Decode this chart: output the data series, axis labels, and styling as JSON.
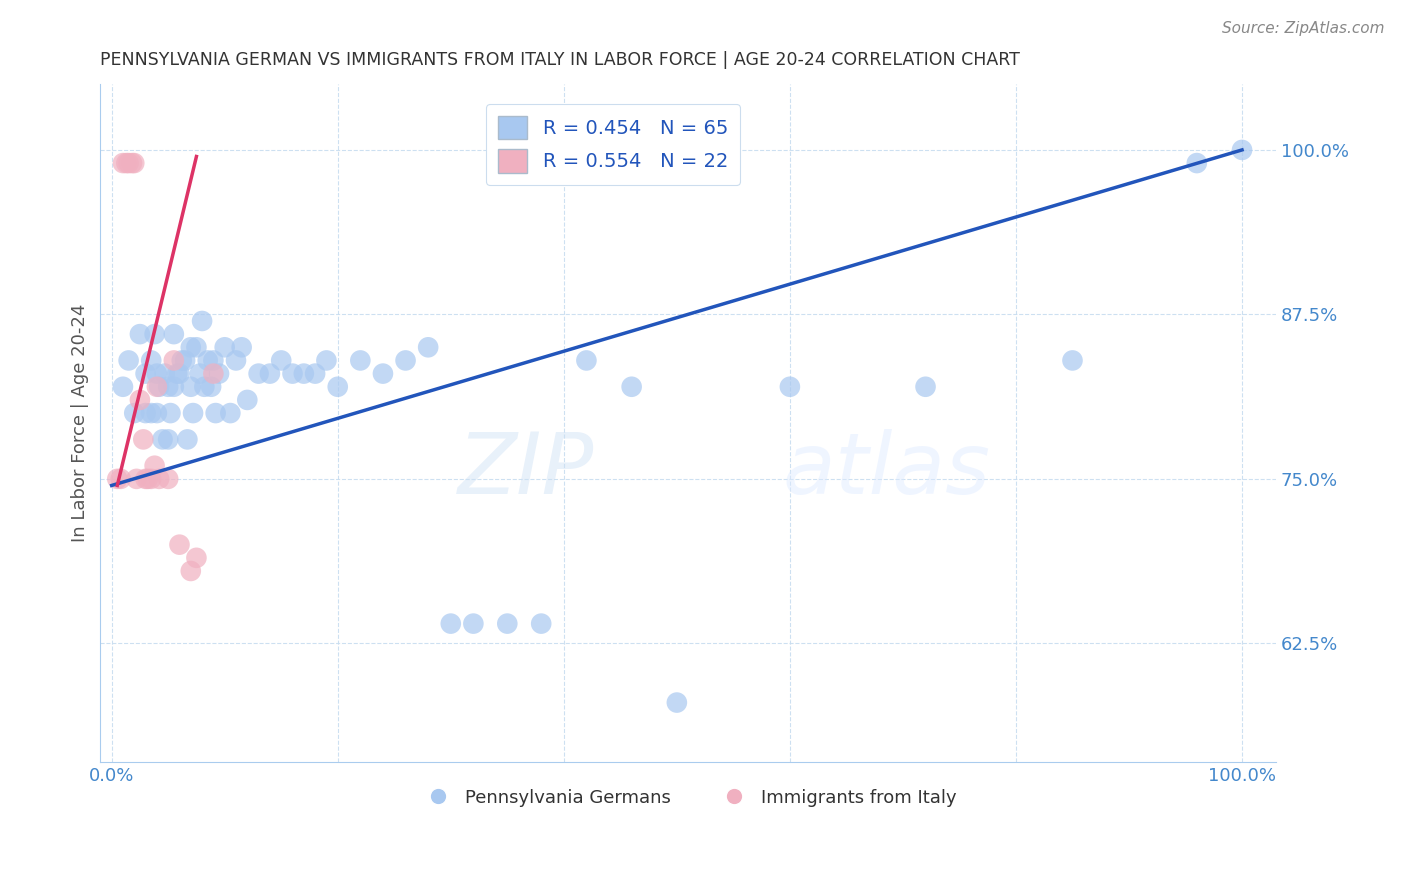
{
  "title": "PENNSYLVANIA GERMAN VS IMMIGRANTS FROM ITALY IN LABOR FORCE | AGE 20-24 CORRELATION CHART",
  "source": "Source: ZipAtlas.com",
  "ylabel": "In Labor Force | Age 20-24",
  "blue_R": "R = 0.454",
  "blue_N": "N = 65",
  "pink_R": "R = 0.554",
  "pink_N": "N = 22",
  "legend_label_blue": "Pennsylvania Germans",
  "legend_label_pink": "Immigrants from Italy",
  "blue_color": "#a8c8f0",
  "pink_color": "#f0b0c0",
  "blue_line_color": "#2255bb",
  "pink_line_color": "#dd3366",
  "axis_color": "#4488cc",
  "watermark_zip": "ZIP",
  "watermark_atlas": "atlas",
  "blue_scatter_x": [
    0.01,
    0.015,
    0.02,
    0.025,
    0.03,
    0.03,
    0.035,
    0.035,
    0.038,
    0.04,
    0.04,
    0.042,
    0.045,
    0.047,
    0.05,
    0.05,
    0.052,
    0.055,
    0.055,
    0.058,
    0.06,
    0.062,
    0.065,
    0.067,
    0.07,
    0.07,
    0.072,
    0.075,
    0.078,
    0.08,
    0.082,
    0.085,
    0.088,
    0.09,
    0.092,
    0.095,
    0.1,
    0.105,
    0.11,
    0.115,
    0.12,
    0.13,
    0.14,
    0.15,
    0.16,
    0.17,
    0.18,
    0.19,
    0.2,
    0.22,
    0.24,
    0.26,
    0.28,
    0.3,
    0.32,
    0.35,
    0.38,
    0.42,
    0.46,
    0.5,
    0.6,
    0.72,
    0.85,
    0.96,
    1.0
  ],
  "blue_scatter_y": [
    0.82,
    0.84,
    0.8,
    0.86,
    0.8,
    0.83,
    0.8,
    0.84,
    0.86,
    0.8,
    0.83,
    0.82,
    0.78,
    0.83,
    0.78,
    0.82,
    0.8,
    0.82,
    0.86,
    0.83,
    0.83,
    0.84,
    0.84,
    0.78,
    0.82,
    0.85,
    0.8,
    0.85,
    0.83,
    0.87,
    0.82,
    0.84,
    0.82,
    0.84,
    0.8,
    0.83,
    0.85,
    0.8,
    0.84,
    0.85,
    0.81,
    0.83,
    0.83,
    0.84,
    0.83,
    0.83,
    0.83,
    0.84,
    0.82,
    0.84,
    0.83,
    0.84,
    0.85,
    0.64,
    0.64,
    0.64,
    0.64,
    0.84,
    0.82,
    0.58,
    0.82,
    0.82,
    0.84,
    0.99,
    1.0
  ],
  "pink_scatter_x": [
    0.005,
    0.008,
    0.01,
    0.013,
    0.015,
    0.018,
    0.02,
    0.022,
    0.025,
    0.028,
    0.03,
    0.032,
    0.035,
    0.038,
    0.04,
    0.042,
    0.05,
    0.055,
    0.06,
    0.07,
    0.075,
    0.09
  ],
  "pink_scatter_y": [
    0.75,
    0.75,
    0.99,
    0.99,
    0.99,
    0.99,
    0.99,
    0.75,
    0.81,
    0.78,
    0.75,
    0.75,
    0.75,
    0.76,
    0.82,
    0.75,
    0.75,
    0.84,
    0.7,
    0.68,
    0.69,
    0.83
  ],
  "blue_line_x0": 0.0,
  "blue_line_y0": 0.745,
  "blue_line_x1": 1.0,
  "blue_line_y1": 1.0,
  "pink_line_x0": 0.005,
  "pink_line_y0": 0.745,
  "pink_line_x1": 0.075,
  "pink_line_y1": 0.995,
  "xlim": [
    -0.01,
    1.03
  ],
  "ylim": [
    0.535,
    1.05
  ],
  "y_ticks": [
    0.625,
    0.75,
    0.875,
    1.0
  ],
  "x_ticks": [
    0.0,
    0.2,
    0.4,
    0.6,
    0.8,
    1.0
  ]
}
